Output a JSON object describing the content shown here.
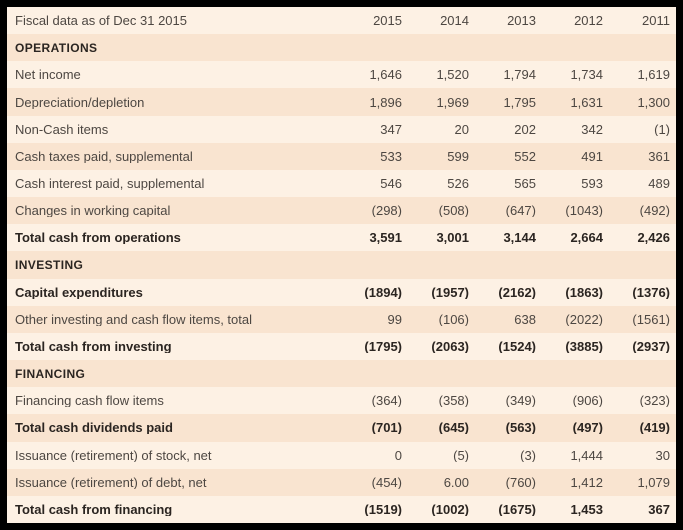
{
  "colors": {
    "stripe_light": "#fdf1e4",
    "stripe_dark": "#f9e4d0",
    "text": "#4d4742",
    "text_bold": "#2b2521",
    "frame": "#000000"
  },
  "chart_data": {
    "type": "table",
    "title": "Fiscal data as of Dec 31 2015",
    "columns": [
      "2015",
      "2014",
      "2013",
      "2012",
      "2011"
    ],
    "sections": [
      {
        "title": "OPERATIONS",
        "rows": [
          {
            "label": "Net income",
            "bold": false,
            "values": [
              "1,646",
              "1,520",
              "1,794",
              "1,734",
              "1,619"
            ]
          },
          {
            "label": "Depreciation/depletion",
            "bold": false,
            "values": [
              "1,896",
              "1,969",
              "1,795",
              "1,631",
              "1,300"
            ]
          },
          {
            "label": "Non-Cash items",
            "bold": false,
            "values": [
              "347",
              "20",
              "202",
              "342",
              "(1)"
            ]
          },
          {
            "label": "Cash taxes paid, supplemental",
            "bold": false,
            "values": [
              "533",
              "599",
              "552",
              "491",
              "361"
            ]
          },
          {
            "label": "Cash interest paid, supplemental",
            "bold": false,
            "values": [
              "546",
              "526",
              "565",
              "593",
              "489"
            ]
          },
          {
            "label": "Changes in working capital",
            "bold": false,
            "values": [
              "(298)",
              "(508)",
              "(647)",
              "(1043)",
              "(492)"
            ]
          },
          {
            "label": "Total cash from operations",
            "bold": true,
            "values": [
              "3,591",
              "3,001",
              "3,144",
              "2,664",
              "2,426"
            ]
          }
        ]
      },
      {
        "title": "INVESTING",
        "rows": [
          {
            "label": "Capital expenditures",
            "bold": true,
            "values": [
              "(1894)",
              "(1957)",
              "(2162)",
              "(1863)",
              "(1376)"
            ]
          },
          {
            "label": "Other investing and cash flow items, total",
            "bold": false,
            "values": [
              "99",
              "(106)",
              "638",
              "(2022)",
              "(1561)"
            ]
          },
          {
            "label": "Total cash from investing",
            "bold": true,
            "values": [
              "(1795)",
              "(2063)",
              "(1524)",
              "(3885)",
              "(2937)"
            ]
          }
        ]
      },
      {
        "title": "FINANCING",
        "rows": [
          {
            "label": "Financing cash flow items",
            "bold": false,
            "values": [
              "(364)",
              "(358)",
              "(349)",
              "(906)",
              "(323)"
            ]
          },
          {
            "label": "Total cash dividends paid",
            "bold": true,
            "values": [
              "(701)",
              "(645)",
              "(563)",
              "(497)",
              "(419)"
            ]
          },
          {
            "label": "Issuance (retirement) of stock, net",
            "bold": false,
            "values": [
              "0",
              "(5)",
              "(3)",
              "1,444",
              "30"
            ]
          },
          {
            "label": "Issuance (retirement) of debt, net",
            "bold": false,
            "values": [
              "(454)",
              "6.00",
              "(760)",
              "1,412",
              "1,079"
            ]
          },
          {
            "label": "Total cash from financing",
            "bold": true,
            "values": [
              "(1519)",
              "(1002)",
              "(1675)",
              "1,453",
              "367"
            ]
          }
        ]
      }
    ]
  }
}
